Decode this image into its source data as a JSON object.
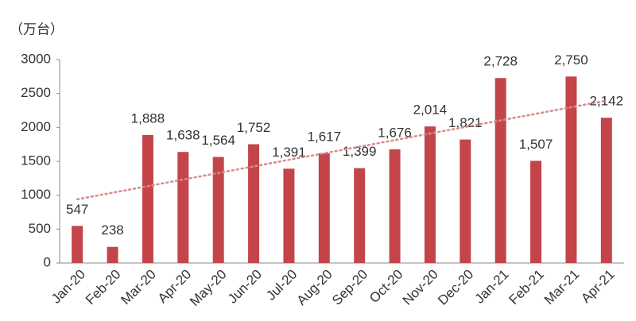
{
  "chart_data": {
    "type": "bar",
    "unit_label": "（万台）",
    "categories": [
      "Jan-20",
      "Feb-20",
      "Mar-20",
      "Apr-20",
      "May-20",
      "Jun-20",
      "Jul-20",
      "Aug-20",
      "Sep-20",
      "Oct-20",
      "Nov-20",
      "Dec-20",
      "Jan-21",
      "Feb-21",
      "Mar-21",
      "Apr-21"
    ],
    "values": [
      547,
      238,
      1888,
      1638,
      1564,
      1752,
      1391,
      1617,
      1399,
      1676,
      2014,
      1821,
      2728,
      1507,
      2750,
      2142
    ],
    "value_labels": [
      "547",
      "238",
      "1,888",
      "1,638",
      "1,564",
      "1,752",
      "1,391",
      "1,617",
      "1,399",
      "1,676",
      "2,014",
      "1,821",
      "2,728",
      "1,507",
      "2,750",
      "2,142"
    ],
    "color": "#c3454a",
    "trendline": true,
    "trendline_color": "#d98a8a",
    "ylim": [
      0,
      3000
    ],
    "yticks": [
      0,
      500,
      1000,
      1500,
      2000,
      2500,
      3000
    ],
    "grid": false
  }
}
